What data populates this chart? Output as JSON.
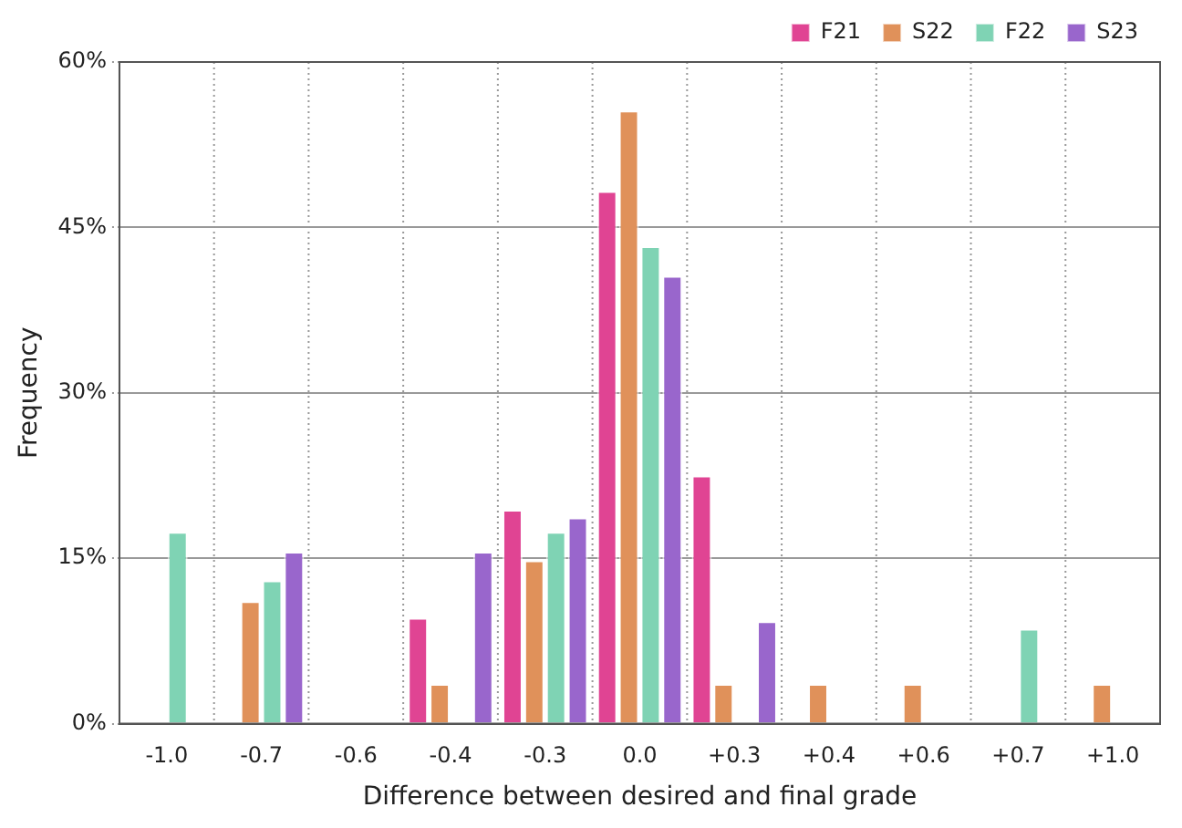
{
  "chart_data": {
    "type": "bar",
    "xlabel": "Difference between desired and final grade",
    "ylabel": "Frequency",
    "categories": [
      "-1.0",
      "-0.7",
      "-0.6",
      "-0.4",
      "-0.3",
      "0.0",
      "+0.3",
      "+0.4",
      "+0.6",
      "+0.7",
      "+1.0"
    ],
    "series": [
      {
        "name": "F21",
        "color": "#e04493",
        "values": [
          null,
          null,
          null,
          9.6,
          19.4,
          48.3,
          22.5,
          null,
          null,
          null,
          null
        ]
      },
      {
        "name": "S22",
        "color": "#e0915a",
        "values": [
          null,
          11.1,
          null,
          3.6,
          14.8,
          55.6,
          3.6,
          3.6,
          3.6,
          null,
          3.6
        ]
      },
      {
        "name": "F22",
        "color": "#7fd3b4",
        "values": [
          17.4,
          13.0,
          null,
          null,
          17.4,
          43.3,
          null,
          null,
          null,
          8.6,
          null
        ]
      },
      {
        "name": "S23",
        "color": "#9966cc",
        "values": [
          null,
          15.6,
          null,
          15.6,
          18.7,
          40.6,
          9.3,
          null,
          null,
          null,
          null
        ]
      }
    ],
    "ylim": [
      0,
      60
    ],
    "yticks": [
      {
        "value": 0,
        "label": "0%"
      },
      {
        "value": 15,
        "label": "15%"
      },
      {
        "value": 30,
        "label": "30%"
      },
      {
        "value": 45,
        "label": "45%"
      },
      {
        "value": 60,
        "label": "60%"
      }
    ],
    "grid": true,
    "legend": "top right"
  }
}
